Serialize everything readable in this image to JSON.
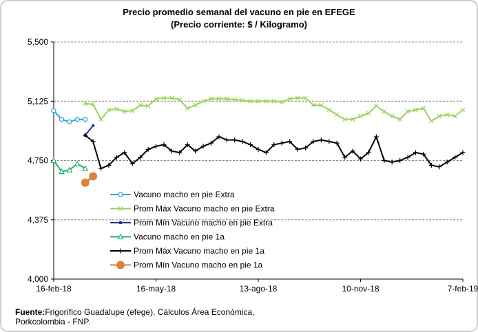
{
  "chart_data": {
    "type": "line",
    "title": "Precio promedio semanal del vacuno en pie en EFEGE",
    "subtitle": "(Precio corriente: $ / Kilogramo)",
    "categories": [
      "16-feb-18",
      null,
      null,
      null,
      null,
      null,
      null,
      null,
      null,
      null,
      null,
      null,
      null,
      "16-may-18",
      null,
      null,
      null,
      null,
      null,
      null,
      null,
      null,
      null,
      null,
      null,
      null,
      "13-ago-18",
      null,
      null,
      null,
      null,
      null,
      null,
      null,
      null,
      null,
      null,
      null,
      null,
      "10-nov-18",
      null,
      null,
      null,
      null,
      null,
      null,
      null,
      null,
      null,
      null,
      null,
      null,
      "7-feb-19"
    ],
    "ylim": [
      4000,
      5500
    ],
    "yticks": [
      {
        "value": 4000,
        "label": "4,000"
      },
      {
        "value": 4375,
        "label": "4,375"
      },
      {
        "value": 4750,
        "label": "4,750"
      },
      {
        "value": 5125,
        "label": "5,125"
      },
      {
        "value": 5500,
        "label": "5,500"
      }
    ],
    "grid": true,
    "series": [
      {
        "name": "Vacuno macho en pie Extra",
        "color": "#2aa6e0",
        "marker": "circle",
        "values": [
          5065,
          5010,
          4995,
          5010,
          5010,
          null,
          null,
          null,
          null,
          null,
          null,
          null,
          null,
          null,
          null,
          null,
          null,
          null,
          null,
          null,
          null,
          null,
          null,
          null,
          null,
          null,
          null,
          null,
          null,
          null,
          null,
          null,
          null,
          null,
          null,
          null,
          null,
          null,
          null,
          null,
          null,
          null,
          null,
          null,
          null,
          null,
          null,
          null,
          null,
          null,
          null,
          null,
          null
        ]
      },
      {
        "name": "Prom Máx Vacuno macho en pie Extra",
        "color": "#9bd35a",
        "marker": "x",
        "values": [
          null,
          null,
          null,
          null,
          5110,
          5105,
          5010,
          5070,
          5075,
          5060,
          5065,
          5100,
          5095,
          5140,
          5145,
          5145,
          5135,
          5080,
          5100,
          5125,
          5140,
          5140,
          5140,
          5135,
          5130,
          5125,
          5125,
          5125,
          5125,
          5120,
          5140,
          5145,
          5145,
          5100,
          5100,
          5070,
          5040,
          5010,
          5010,
          5030,
          5050,
          5095,
          5060,
          5030,
          5010,
          5060,
          5070,
          5080,
          5000,
          5030,
          5040,
          5030,
          5070
        ]
      },
      {
        "name": "Prom Mín Vacuno macho en pie Extra",
        "color": "#1f3c88",
        "marker": "square",
        "values": [
          null,
          null,
          null,
          null,
          4910,
          4970,
          null,
          null,
          null,
          null,
          null,
          null,
          null,
          null,
          null,
          null,
          null,
          null,
          null,
          null,
          null,
          null,
          null,
          null,
          null,
          null,
          null,
          null,
          null,
          null,
          null,
          null,
          null,
          null,
          null,
          null,
          null,
          null,
          null,
          null,
          null,
          null,
          null,
          null,
          null,
          null,
          null,
          null,
          null,
          null,
          null,
          null,
          null
        ]
      },
      {
        "name": "Vacuno macho en pie 1a",
        "color": "#1db36b",
        "marker": "triangle",
        "values": [
          4750,
          4680,
          4690,
          4730,
          4700,
          null,
          null,
          null,
          null,
          null,
          null,
          null,
          null,
          null,
          null,
          null,
          null,
          null,
          null,
          null,
          null,
          null,
          null,
          null,
          null,
          null,
          null,
          null,
          null,
          null,
          null,
          null,
          null,
          null,
          null,
          null,
          null,
          null,
          null,
          null,
          null,
          null,
          null,
          null,
          null,
          null,
          null,
          null,
          null,
          null,
          null,
          null,
          null
        ]
      },
      {
        "name": "Prom Máx Vacuno macho en pie 1a",
        "color": "#000000",
        "marker": "plus",
        "values": [
          null,
          null,
          null,
          null,
          4910,
          4870,
          4700,
          4720,
          4770,
          4800,
          4730,
          4770,
          4820,
          4840,
          4850,
          4810,
          4800,
          4850,
          4810,
          4840,
          4860,
          4900,
          4880,
          4880,
          4870,
          4850,
          4820,
          4800,
          4850,
          4860,
          4870,
          4820,
          4830,
          4870,
          4880,
          4870,
          4860,
          4770,
          4810,
          4760,
          4800,
          4900,
          4750,
          4740,
          4750,
          4770,
          4800,
          4790,
          4720,
          4710,
          4740,
          4770,
          4800
        ]
      },
      {
        "name": "Prom Mín Vacuno macho en pie 1a",
        "color": "#d9823b",
        "marker": "bigcircle",
        "values": [
          null,
          null,
          null,
          null,
          4610,
          4650,
          null,
          null,
          null,
          null,
          null,
          null,
          null,
          null,
          null,
          null,
          null,
          null,
          null,
          null,
          null,
          null,
          null,
          null,
          null,
          null,
          null,
          null,
          null,
          null,
          null,
          null,
          null,
          null,
          null,
          null,
          null,
          null,
          null,
          null,
          null,
          null,
          null,
          null,
          null,
          null,
          null,
          null,
          null,
          null,
          null,
          null,
          null
        ]
      }
    ],
    "source_label": "Fuente:",
    "source_lines": [
      "Frigorífico Guadalupe (efege). Cálculos Área Económica,",
      "Porkcolombia  - FNP."
    ]
  }
}
